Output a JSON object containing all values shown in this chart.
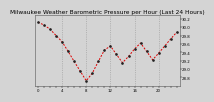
{
  "title": "Milwaukee Weather Barometric Pressure per Hour (Last 24 Hours)",
  "hours": [
    0,
    1,
    2,
    3,
    4,
    5,
    6,
    7,
    8,
    9,
    10,
    11,
    12,
    13,
    14,
    15,
    16,
    17,
    18,
    19,
    20,
    21,
    22,
    23
  ],
  "pressure": [
    30.12,
    30.05,
    29.95,
    29.8,
    29.65,
    29.42,
    29.18,
    28.95,
    28.72,
    28.9,
    29.18,
    29.45,
    29.55,
    29.35,
    29.15,
    29.3,
    29.48,
    29.62,
    29.42,
    29.22,
    29.38,
    29.55,
    29.72,
    29.88
  ],
  "line_color": "#dd0000",
  "marker_color": "#222222",
  "grid_color": "#999999",
  "bg_color": "#d4d4d4",
  "plot_bg_color": "#d4d4d4",
  "ylim_min": 28.6,
  "ylim_max": 30.3,
  "yticks": [
    28.8,
    29.0,
    29.2,
    29.4,
    29.6,
    29.8,
    30.0,
    30.2
  ],
  "ytick_labels": [
    "28.8",
    "29.0",
    "29.2",
    "29.4",
    "29.6",
    "29.8",
    "30.0",
    "30.2"
  ],
  "vline_positions": [
    4,
    8,
    12,
    16,
    20
  ],
  "title_fontsize": 4.2,
  "tick_fontsize": 2.8,
  "linewidth": 0.7,
  "markersize": 1.8
}
